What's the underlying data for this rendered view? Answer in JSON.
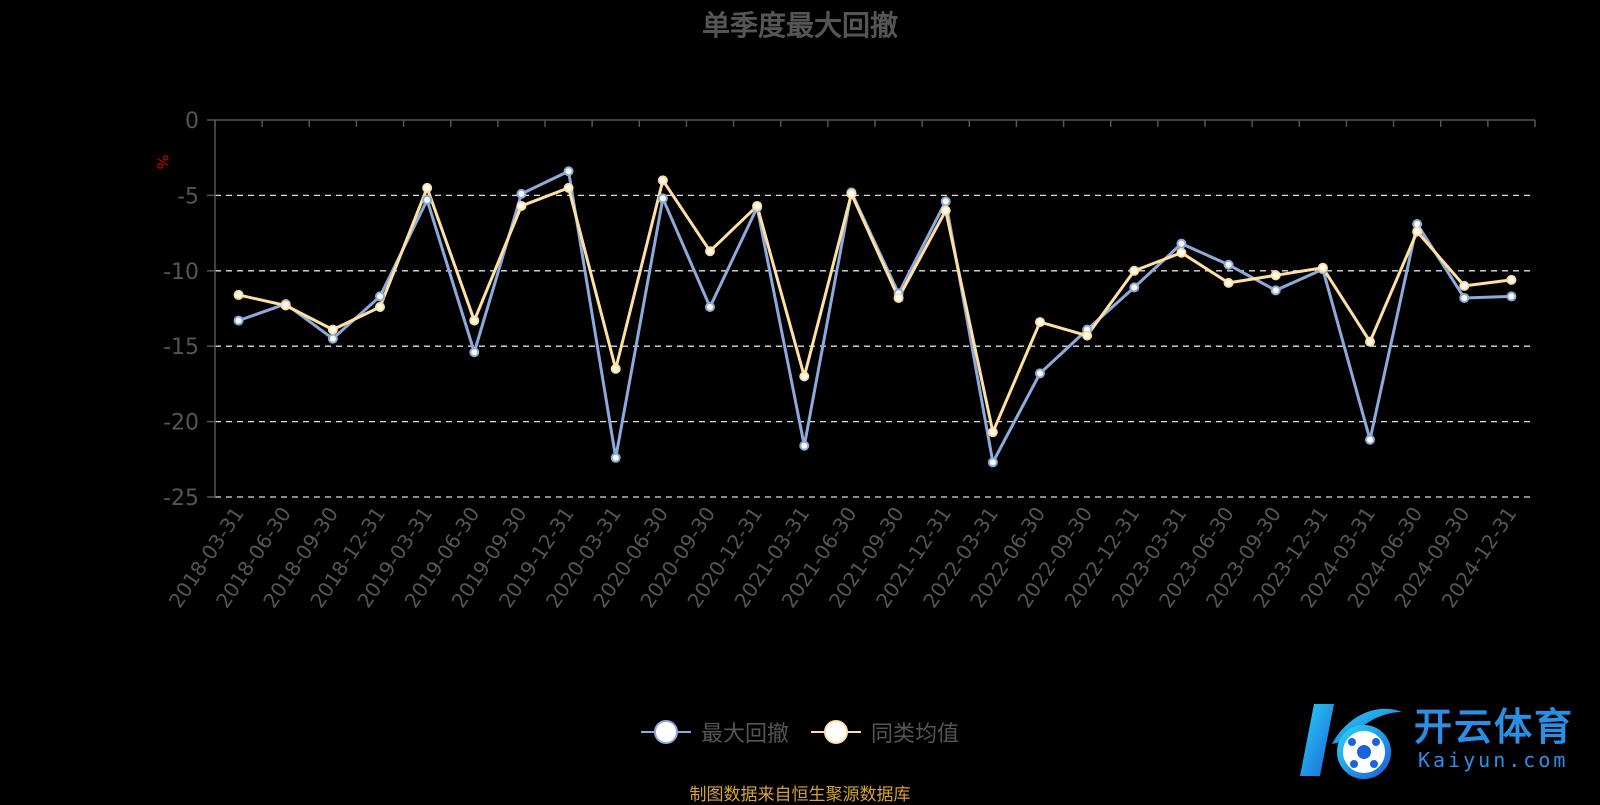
{
  "title": "单季度最大回撤",
  "footer_text": "制图数据来自恒生聚源数据库",
  "logo": {
    "name_cn": "开云体育",
    "url_text": "Kaiyun.com"
  },
  "colors": {
    "series1": "#8eaadb",
    "series2": "#ffe0a3",
    "axis": "#555555",
    "grid": "#dddddd",
    "unit": "#cc0000",
    "footer": "#d7a233"
  },
  "chart_data": {
    "type": "line",
    "title": "单季度最大回撤",
    "ylabel": "%",
    "ylim": [
      -25,
      0
    ],
    "yticks": [
      0,
      -5,
      -10,
      -15,
      -20,
      -25
    ],
    "grid": "horizontal dashed",
    "legend_position": "bottom",
    "categories": [
      "2018-03-31",
      "2018-06-30",
      "2018-09-30",
      "2018-12-31",
      "2019-03-31",
      "2019-06-30",
      "2019-09-30",
      "2019-12-31",
      "2020-03-31",
      "2020-06-30",
      "2020-09-30",
      "2020-12-31",
      "2021-03-31",
      "2021-06-30",
      "2021-09-30",
      "2021-12-31",
      "2022-03-31",
      "2022-06-30",
      "2022-09-30",
      "2022-12-31",
      "2023-03-31",
      "2023-06-30",
      "2023-09-30",
      "2023-12-31",
      "2024-03-31",
      "2024-06-30",
      "2024-09-30",
      "2024-12-31"
    ],
    "series": [
      {
        "name": "最大回撤",
        "values": [
          -13.3,
          -12.2,
          -14.5,
          -11.7,
          -5.3,
          -15.4,
          -4.9,
          -3.4,
          -22.4,
          -5.2,
          -12.4,
          -5.8,
          -21.6,
          -4.8,
          -11.5,
          -5.4,
          -22.7,
          -16.8,
          -13.9,
          -11.1,
          -8.2,
          -9.6,
          -11.3,
          -9.9,
          -21.2,
          -6.9,
          -11.8,
          -11.7
        ]
      },
      {
        "name": "同类均值",
        "values": [
          -11.6,
          -12.3,
          -13.9,
          -12.4,
          -4.5,
          -13.3,
          -5.7,
          -4.5,
          -16.5,
          -4.0,
          -8.7,
          -5.7,
          -17.0,
          -4.9,
          -11.8,
          -6.0,
          -20.7,
          -13.4,
          -14.3,
          -10.0,
          -8.8,
          -10.8,
          -10.3,
          -9.8,
          -14.7,
          -7.4,
          -11.0,
          -10.6
        ]
      }
    ]
  }
}
